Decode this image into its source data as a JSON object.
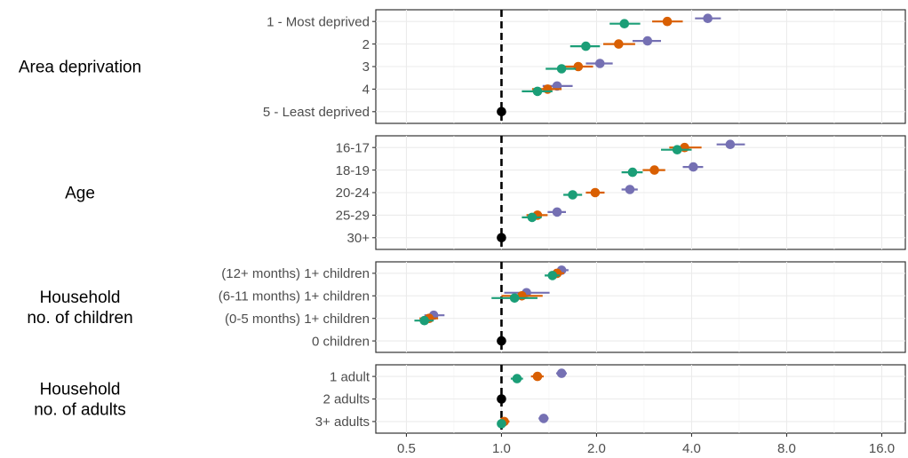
{
  "chart_data": {
    "type": "forest",
    "x_scale": "log",
    "xlim": [
      0.4,
      19
    ],
    "x_ticks": [
      {
        "value": 0.5,
        "label": "0.5"
      },
      {
        "value": 1.0,
        "label": "1.0"
      },
      {
        "value": 2.0,
        "label": "2.0"
      },
      {
        "value": 4.0,
        "label": "4.0"
      },
      {
        "value": 8.0,
        "label": "8.0"
      },
      {
        "value": 16.0,
        "label": "16.0"
      }
    ],
    "reference_line": 1.0,
    "grid": true,
    "colors": {
      "series1": "#d95f02",
      "series2": "#1b9e77",
      "series3": "#7570b3",
      "reference": "#000000"
    },
    "groups": [
      {
        "label_lines": [
          "Area deprivation"
        ],
        "categories": [
          {
            "label": "1 - Most deprived",
            "points": [
              {
                "series": "series1",
                "est": 3.35,
                "lo": 3.0,
                "hi": 3.75
              },
              {
                "series": "series2",
                "est": 2.45,
                "lo": 2.2,
                "hi": 2.75
              },
              {
                "series": "series3",
                "est": 4.5,
                "lo": 4.1,
                "hi": 4.95
              }
            ]
          },
          {
            "label": "2",
            "points": [
              {
                "series": "series1",
                "est": 2.35,
                "lo": 2.1,
                "hi": 2.65
              },
              {
                "series": "series2",
                "est": 1.85,
                "lo": 1.65,
                "hi": 2.05
              },
              {
                "series": "series3",
                "est": 2.9,
                "lo": 2.6,
                "hi": 3.2
              }
            ]
          },
          {
            "label": "3",
            "points": [
              {
                "series": "series1",
                "est": 1.75,
                "lo": 1.55,
                "hi": 1.95
              },
              {
                "series": "series2",
                "est": 1.55,
                "lo": 1.38,
                "hi": 1.72
              },
              {
                "series": "series3",
                "est": 2.05,
                "lo": 1.85,
                "hi": 2.25
              }
            ]
          },
          {
            "label": "4",
            "points": [
              {
                "series": "series1",
                "est": 1.4,
                "lo": 1.25,
                "hi": 1.55
              },
              {
                "series": "series2",
                "est": 1.3,
                "lo": 1.16,
                "hi": 1.45
              },
              {
                "series": "series3",
                "est": 1.5,
                "lo": 1.35,
                "hi": 1.68
              }
            ]
          },
          {
            "label": "5 - Least deprived",
            "points": [
              {
                "series": "reference",
                "est": 1.0,
                "lo": 1.0,
                "hi": 1.0
              }
            ]
          }
        ]
      },
      {
        "label_lines": [
          "Age"
        ],
        "categories": [
          {
            "label": "16-17",
            "points": [
              {
                "series": "series1",
                "est": 3.8,
                "lo": 3.4,
                "hi": 4.3
              },
              {
                "series": "series2",
                "est": 3.6,
                "lo": 3.2,
                "hi": 4.0
              },
              {
                "series": "series3",
                "est": 5.3,
                "lo": 4.8,
                "hi": 5.9
              }
            ]
          },
          {
            "label": "18-19",
            "points": [
              {
                "series": "series1",
                "est": 3.05,
                "lo": 2.8,
                "hi": 3.3
              },
              {
                "series": "series2",
                "est": 2.6,
                "lo": 2.4,
                "hi": 2.8
              },
              {
                "series": "series3",
                "est": 4.05,
                "lo": 3.75,
                "hi": 4.35
              }
            ]
          },
          {
            "label": "20-24",
            "points": [
              {
                "series": "series1",
                "est": 1.98,
                "lo": 1.85,
                "hi": 2.12
              },
              {
                "series": "series2",
                "est": 1.68,
                "lo": 1.57,
                "hi": 1.8
              },
              {
                "series": "series3",
                "est": 2.55,
                "lo": 2.4,
                "hi": 2.7
              }
            ]
          },
          {
            "label": "25-29",
            "points": [
              {
                "series": "series1",
                "est": 1.3,
                "lo": 1.2,
                "hi": 1.4
              },
              {
                "series": "series2",
                "est": 1.25,
                "lo": 1.16,
                "hi": 1.34
              },
              {
                "series": "series3",
                "est": 1.5,
                "lo": 1.4,
                "hi": 1.6
              }
            ]
          },
          {
            "label": "30+",
            "points": [
              {
                "series": "reference",
                "est": 1.0,
                "lo": 1.0,
                "hi": 1.0
              }
            ]
          }
        ]
      },
      {
        "label_lines": [
          "Household",
          "no. of children"
        ],
        "categories": [
          {
            "label": "(12+ months) 1+ children",
            "points": [
              {
                "series": "series1",
                "est": 1.5,
                "lo": 1.42,
                "hi": 1.58
              },
              {
                "series": "series2",
                "est": 1.45,
                "lo": 1.37,
                "hi": 1.53
              },
              {
                "series": "series3",
                "est": 1.55,
                "lo": 1.47,
                "hi": 1.63
              }
            ]
          },
          {
            "label": "(6-11 months) 1+ children",
            "points": [
              {
                "series": "series1",
                "est": 1.16,
                "lo": 1.0,
                "hi": 1.35
              },
              {
                "series": "series2",
                "est": 1.1,
                "lo": 0.93,
                "hi": 1.3
              },
              {
                "series": "series3",
                "est": 1.2,
                "lo": 1.02,
                "hi": 1.42
              }
            ]
          },
          {
            "label": "(0-5 months) 1+ children",
            "points": [
              {
                "series": "series1",
                "est": 0.59,
                "lo": 0.55,
                "hi": 0.63
              },
              {
                "series": "series2",
                "est": 0.57,
                "lo": 0.53,
                "hi": 0.61
              },
              {
                "series": "series3",
                "est": 0.61,
                "lo": 0.57,
                "hi": 0.66
              }
            ]
          },
          {
            "label": "0 children",
            "points": [
              {
                "series": "reference",
                "est": 1.0,
                "lo": 1.0,
                "hi": 1.0
              }
            ]
          }
        ]
      },
      {
        "label_lines": [
          "Household",
          "no. of adults"
        ],
        "categories": [
          {
            "label": "1 adult",
            "points": [
              {
                "series": "series1",
                "est": 1.3,
                "lo": 1.24,
                "hi": 1.36
              },
              {
                "series": "series2",
                "est": 1.12,
                "lo": 1.07,
                "hi": 1.17
              },
              {
                "series": "series3",
                "est": 1.55,
                "lo": 1.49,
                "hi": 1.61
              }
            ]
          },
          {
            "label": "2 adults",
            "points": [
              {
                "series": "reference",
                "est": 1.0,
                "lo": 1.0,
                "hi": 1.0
              }
            ]
          },
          {
            "label": "3+ adults",
            "points": [
              {
                "series": "series1",
                "est": 1.02,
                "lo": 0.98,
                "hi": 1.06
              },
              {
                "series": "series2",
                "est": 1.0,
                "lo": 0.97,
                "hi": 1.03
              },
              {
                "series": "series3",
                "est": 1.36,
                "lo": 1.31,
                "hi": 1.41
              }
            ]
          }
        ]
      }
    ]
  }
}
